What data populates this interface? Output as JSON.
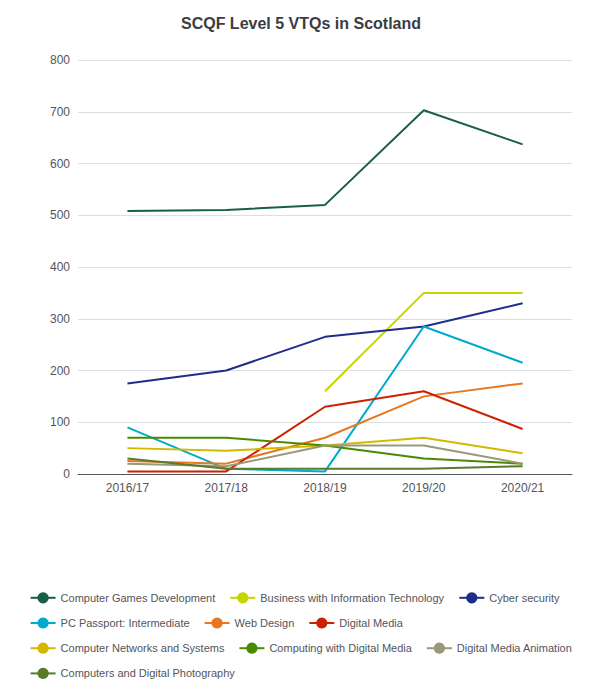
{
  "chart_data": {
    "type": "line",
    "title": "SCQF Level 5 VTQs in Scotland",
    "categories": [
      "2016/17",
      "2017/18",
      "2018/19",
      "2019/20",
      "2020/21"
    ],
    "series": [
      {
        "name": "Computer Games Development",
        "color": "#1a5e45",
        "values": [
          508,
          510,
          520,
          703,
          637
        ]
      },
      {
        "name": "Business with Information Technology",
        "color": "#c8d400",
        "values": [
          null,
          null,
          160,
          350,
          350
        ]
      },
      {
        "name": "Cyber security",
        "color": "#1f2d8a",
        "values": [
          175,
          200,
          265,
          285,
          330
        ]
      },
      {
        "name": "PC Passport: Intermediate",
        "color": "#00aacc",
        "values": [
          90,
          10,
          5,
          285,
          215
        ]
      },
      {
        "name": "Web Design",
        "color": "#e87722",
        "values": [
          25,
          20,
          70,
          150,
          175
        ]
      },
      {
        "name": "Digital Media",
        "color": "#cc2200",
        "values": [
          5,
          5,
          130,
          160,
          87
        ]
      },
      {
        "name": "Computer Networks and Systems",
        "color": "#d4b800",
        "values": [
          50,
          45,
          55,
          70,
          40
        ]
      },
      {
        "name": "Computing with Digital Media",
        "color": "#4a8a00",
        "values": [
          70,
          70,
          55,
          30,
          20
        ]
      },
      {
        "name": "Digital Media Animation",
        "color": "#999977",
        "values": [
          20,
          15,
          55,
          55,
          20
        ]
      },
      {
        "name": "Computers and Digital Photography",
        "color": "#5a7a2a",
        "values": [
          30,
          10,
          10,
          10,
          15
        ]
      }
    ],
    "ylim": [
      0,
      800
    ],
    "yticks": [
      0,
      100,
      200,
      300,
      400,
      500,
      600,
      700,
      800
    ],
    "grid": true,
    "legend": "bottom"
  }
}
